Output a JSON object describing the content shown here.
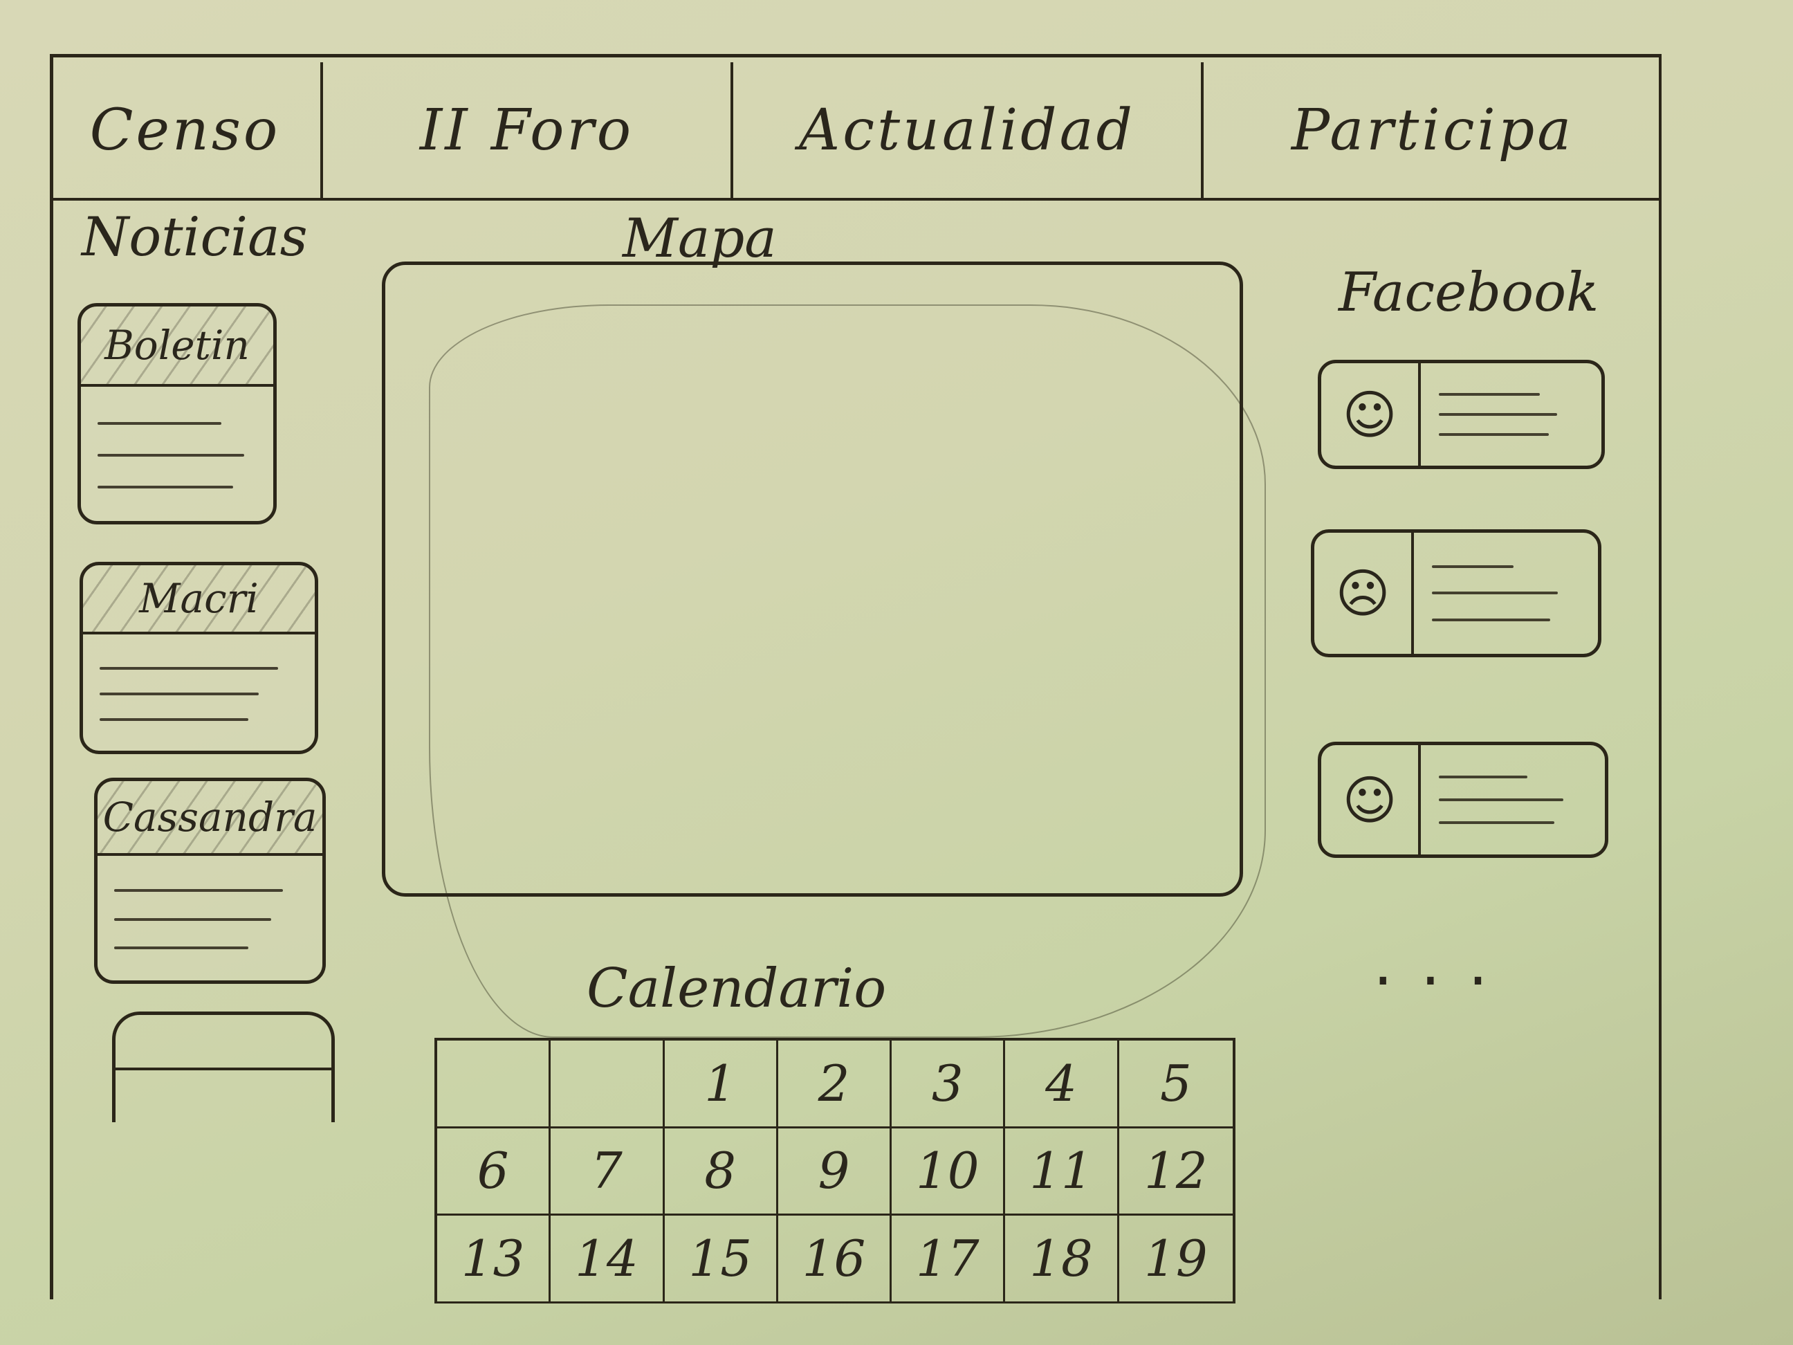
{
  "nav": {
    "items": [
      {
        "label": "Censo"
      },
      {
        "label": "II Foro"
      },
      {
        "label": "Actualidad"
      },
      {
        "label": "Participa"
      }
    ]
  },
  "news": {
    "heading": "Noticias",
    "cards": [
      {
        "title": "Boletin"
      },
      {
        "title": "Macri"
      },
      {
        "title": "Cassandra"
      },
      {
        "title": ""
      }
    ]
  },
  "map": {
    "heading": "Mapa"
  },
  "calendar": {
    "heading": "Calendario",
    "days": [
      "",
      "",
      "1",
      "2",
      "3",
      "4",
      "5",
      "6",
      "7",
      "8",
      "9",
      "10",
      "11",
      "12",
      "13",
      "14",
      "15",
      "16",
      "17",
      "18",
      "19"
    ]
  },
  "facebook": {
    "heading": "Facebook",
    "posts": [
      {
        "avatar_icon": "smiley-face-icon",
        "avatar_glyph": "☺"
      },
      {
        "avatar_icon": "sad-face-icon",
        "avatar_glyph": "☹"
      },
      {
        "avatar_icon": "content-face-icon",
        "avatar_glyph": "☺"
      }
    ],
    "more": "..."
  }
}
